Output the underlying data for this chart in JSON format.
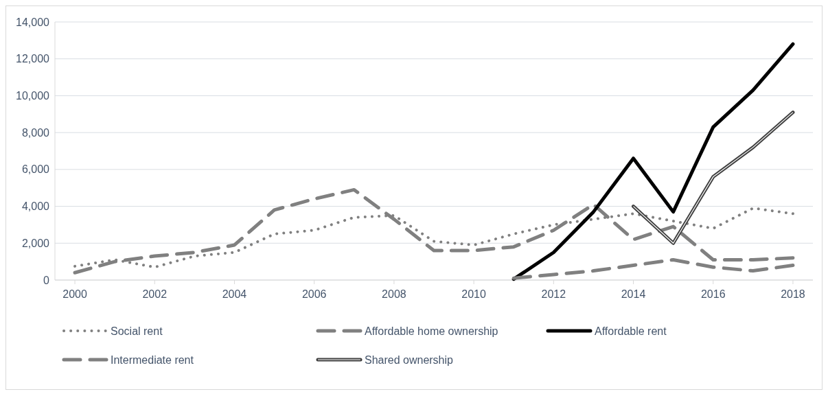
{
  "chart_data": {
    "type": "line",
    "x": [
      2000,
      2001,
      2002,
      2003,
      2004,
      2005,
      2006,
      2007,
      2008,
      2009,
      2010,
      2011,
      2012,
      2013,
      2014,
      2015,
      2016,
      2017,
      2018
    ],
    "xlim": [
      1999.5,
      2018.5
    ],
    "xticks": [
      2000,
      2002,
      2004,
      2006,
      2008,
      2010,
      2012,
      2014,
      2016,
      2018
    ],
    "ylim": [
      0,
      14000
    ],
    "yticks": [
      {
        "value": 0,
        "label": "0"
      },
      {
        "value": 2000,
        "label": "2,000"
      },
      {
        "value": 4000,
        "label": "4,000"
      },
      {
        "value": 6000,
        "label": "6,000"
      },
      {
        "value": 8000,
        "label": "8,000"
      },
      {
        "value": 10000,
        "label": "10,000"
      },
      {
        "value": 12000,
        "label": "12,000"
      },
      {
        "value": 14000,
        "label": "14,000"
      }
    ],
    "grid": "y",
    "legend": "bottom",
    "marker": "none",
    "series": [
      {
        "name": "Social rent",
        "color": "#808080",
        "line_style": "dotted",
        "values": [
          750,
          1100,
          700,
          1300,
          1500,
          2500,
          2700,
          3400,
          3500,
          2100,
          1900,
          2500,
          3000,
          3300,
          3600,
          3200,
          2800,
          3900,
          3600
        ]
      },
      {
        "name": "Affordable home ownership",
        "color": "#808080",
        "line_style": "dashed",
        "values": [
          400,
          1000,
          1300,
          1500,
          1900,
          3800,
          4400,
          4900,
          3300,
          1600,
          1600,
          1800,
          2700,
          4100,
          2200,
          2900,
          1100,
          1100,
          1200
        ]
      },
      {
        "name": "Affordable rent",
        "color": "#000000",
        "line_style": "solid",
        "values": [
          null,
          null,
          null,
          null,
          null,
          null,
          null,
          null,
          null,
          null,
          null,
          50,
          1500,
          3700,
          6600,
          3700,
          8300,
          10300,
          12800
        ]
      },
      {
        "name": "Intermediate rent",
        "color": "#808080",
        "line_style": "dashed",
        "values": [
          null,
          null,
          null,
          null,
          null,
          null,
          null,
          null,
          null,
          null,
          null,
          100,
          300,
          500,
          800,
          1100,
          700,
          500,
          800
        ]
      },
      {
        "name": "Shared ownership",
        "color": "#404040",
        "line_style": "solid",
        "values": [
          null,
          null,
          null,
          null,
          null,
          null,
          null,
          null,
          null,
          null,
          null,
          null,
          null,
          null,
          4000,
          2000,
          5600,
          7200,
          9100
        ]
      }
    ]
  }
}
